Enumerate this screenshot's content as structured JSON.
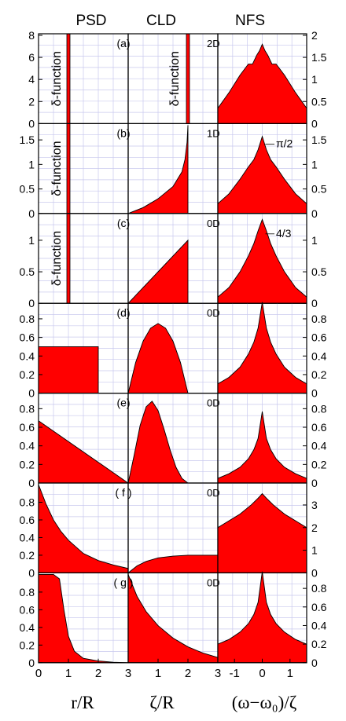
{
  "figure": {
    "headers": [
      "PSD",
      "CLD",
      "NFS"
    ],
    "bottom_labels": {
      "left": "r/R",
      "middle": "ζ/R",
      "right": "(ω−ω₀)/ζ"
    }
  },
  "chart_data": [
    {
      "type": "area",
      "row_label": "(a)",
      "psd": {
        "type": "area",
        "x": [
          0.98,
          1.0,
          1.02
        ],
        "y": [
          0,
          8,
          0
        ],
        "xlim": [
          0,
          3
        ],
        "ylim": [
          0,
          8
        ],
        "yticks": [
          0,
          2,
          4,
          6,
          8
        ],
        "annotation": "δ-function",
        "spike_at": 1
      },
      "cld": {
        "type": "area",
        "x": [
          1.98,
          2.0,
          2.02
        ],
        "y": [
          0,
          2,
          0
        ],
        "xlim": [
          0,
          3
        ],
        "ylim": [
          0,
          2
        ],
        "annotation": "δ-function",
        "spike_at": 2
      },
      "nfs": {
        "type": "area",
        "x": [
          -1.6,
          -1.2,
          -0.8,
          -0.5,
          -0.35,
          -0.2,
          -0.1,
          0,
          0.1,
          0.2,
          0.35,
          0.5,
          0.8,
          1.2,
          1.6
        ],
        "y": [
          0.35,
          0.7,
          1.1,
          1.35,
          1.35,
          1.55,
          1.65,
          1.8,
          1.65,
          1.55,
          1.35,
          1.35,
          1.1,
          0.7,
          0.35
        ],
        "xlim": [
          -1.6,
          1.6
        ],
        "ylim": [
          0,
          2.0
        ],
        "yticks": [
          0.0,
          0.5,
          1.0,
          1.5,
          2.0
        ],
        "dimension": "2D"
      }
    },
    {
      "type": "area",
      "row_label": "(b)",
      "psd": {
        "type": "area",
        "x": [
          0.98,
          1.0,
          1.02
        ],
        "y": [
          0,
          1.8,
          0
        ],
        "xlim": [
          0,
          3
        ],
        "ylim": [
          0,
          1.8
        ],
        "yticks": [
          0.0,
          0.5,
          1.0,
          1.5
        ],
        "annotation": "δ-function",
        "spike_at": 1
      },
      "cld": {
        "type": "area",
        "x": [
          0,
          0.5,
          1.0,
          1.5,
          1.8,
          1.9,
          1.97,
          2.0
        ],
        "y": [
          0,
          0.12,
          0.3,
          0.55,
          0.85,
          1.1,
          1.45,
          1.8
        ],
        "xlim": [
          0,
          3
        ],
        "ylim": [
          0,
          1.8
        ]
      },
      "nfs": {
        "type": "area",
        "x": [
          -1.6,
          -1.2,
          -0.8,
          -0.5,
          -0.3,
          -0.15,
          0,
          0.15,
          0.3,
          0.5,
          0.8,
          1.2,
          1.6
        ],
        "y": [
          0.2,
          0.4,
          0.7,
          0.95,
          1.1,
          1.3,
          1.57,
          1.3,
          1.1,
          0.95,
          0.7,
          0.4,
          0.2
        ],
        "xlim": [
          -1.6,
          1.6
        ],
        "ylim": [
          0,
          1.8
        ],
        "yticks": [
          0.0,
          0.5,
          1.0,
          1.5
        ],
        "dimension": "1D",
        "annotation": "π/2"
      }
    },
    {
      "type": "area",
      "row_label": "(c)",
      "psd": {
        "type": "area",
        "x": [
          0.98,
          1.0,
          1.02
        ],
        "y": [
          0,
          1.4,
          0
        ],
        "xlim": [
          0,
          3
        ],
        "ylim": [
          0,
          1.4
        ],
        "yticks": [
          0.0,
          0.5,
          1.0
        ],
        "annotation": "δ-function",
        "spike_at": 1
      },
      "cld": {
        "type": "area",
        "x": [
          0,
          2
        ],
        "y": [
          0,
          1.0
        ],
        "xlim": [
          0,
          3
        ],
        "ylim": [
          0,
          1.4
        ]
      },
      "nfs": {
        "type": "area",
        "x": [
          -1.6,
          -1.2,
          -0.8,
          -0.5,
          -0.3,
          -0.15,
          0,
          0.15,
          0.3,
          0.5,
          0.8,
          1.2,
          1.6
        ],
        "y": [
          0.1,
          0.25,
          0.5,
          0.75,
          0.95,
          1.15,
          1.33,
          1.15,
          0.95,
          0.75,
          0.5,
          0.25,
          0.1
        ],
        "xlim": [
          -1.6,
          1.6
        ],
        "ylim": [
          0,
          1.4
        ],
        "yticks": [
          0.0,
          0.5,
          1.0
        ],
        "dimension": "0D",
        "annotation": "4/3"
      }
    },
    {
      "type": "area",
      "row_label": "(d)",
      "psd": {
        "type": "area",
        "x": [
          0,
          0,
          2,
          2
        ],
        "y": [
          0,
          0.5,
          0.5,
          0
        ],
        "xlim": [
          0,
          3
        ],
        "ylim": [
          0,
          0.95
        ],
        "yticks": [
          0.0,
          0.2,
          0.4,
          0.6,
          0.8
        ]
      },
      "cld": {
        "type": "area",
        "x": [
          0,
          0.25,
          0.5,
          0.75,
          1.0,
          1.25,
          1.5,
          1.75,
          2.0
        ],
        "y": [
          0,
          0.33,
          0.56,
          0.7,
          0.75,
          0.7,
          0.56,
          0.33,
          0
        ],
        "xlim": [
          0,
          3
        ],
        "ylim": [
          0,
          0.95
        ]
      },
      "nfs": {
        "type": "area",
        "x": [
          -1.6,
          -1.2,
          -0.8,
          -0.5,
          -0.3,
          -0.15,
          0,
          0.15,
          0.3,
          0.5,
          0.8,
          1.2,
          1.6
        ],
        "y": [
          0.1,
          0.17,
          0.28,
          0.42,
          0.55,
          0.7,
          0.98,
          0.7,
          0.55,
          0.42,
          0.28,
          0.17,
          0.1
        ],
        "xlim": [
          -1.6,
          1.6
        ],
        "ylim": [
          0,
          0.95
        ],
        "yticks": [
          0.0,
          0.2,
          0.4,
          0.6,
          0.8
        ],
        "dimension": "0D"
      }
    },
    {
      "type": "area",
      "row_label": "(e)",
      "psd": {
        "type": "area",
        "x": [
          0,
          3
        ],
        "y": [
          0.67,
          0
        ],
        "xlim": [
          0,
          3
        ],
        "ylim": [
          0,
          0.95
        ],
        "yticks": [
          0.0,
          0.2,
          0.4,
          0.6,
          0.8
        ]
      },
      "cld": {
        "type": "area",
        "x": [
          0,
          0.2,
          0.4,
          0.6,
          0.8,
          1.0,
          1.2,
          1.4,
          1.6,
          1.8,
          2.0
        ],
        "y": [
          0,
          0.3,
          0.62,
          0.82,
          0.88,
          0.78,
          0.58,
          0.36,
          0.17,
          0.05,
          0
        ],
        "xlim": [
          0,
          3
        ],
        "ylim": [
          0,
          0.95
        ]
      },
      "nfs": {
        "type": "area",
        "x": [
          -1.6,
          -1.2,
          -0.8,
          -0.5,
          -0.3,
          -0.15,
          0,
          0.15,
          0.3,
          0.5,
          0.8,
          1.2,
          1.6
        ],
        "y": [
          0.05,
          0.1,
          0.17,
          0.26,
          0.36,
          0.48,
          0.77,
          0.48,
          0.36,
          0.26,
          0.17,
          0.1,
          0.05
        ],
        "xlim": [
          -1.6,
          1.6
        ],
        "ylim": [
          0,
          0.95
        ],
        "yticks": [
          0.0,
          0.2,
          0.4,
          0.6,
          0.8
        ],
        "dimension": "0D"
      }
    },
    {
      "type": "area",
      "row_label": "( f )",
      "psd": {
        "type": "area",
        "x": [
          0,
          0.25,
          0.5,
          0.75,
          1.0,
          1.5,
          2.0,
          2.5,
          3.0
        ],
        "y": [
          1.0,
          0.78,
          0.6,
          0.47,
          0.37,
          0.22,
          0.14,
          0.09,
          0.05
        ],
        "xlim": [
          0,
          3
        ],
        "ylim": [
          0,
          1.0
        ],
        "yticks": [
          0.0,
          0.2,
          0.4,
          0.6,
          0.8
        ]
      },
      "cld": {
        "type": "area",
        "x": [
          0,
          0.3,
          0.6,
          1.0,
          1.5,
          2.0,
          2.5,
          3.0
        ],
        "y": [
          0,
          0.08,
          0.13,
          0.17,
          0.19,
          0.2,
          0.2,
          0.2
        ],
        "xlim": [
          0,
          3
        ],
        "ylim": [
          0,
          1.0
        ]
      },
      "nfs": {
        "type": "area",
        "x": [
          -1.6,
          -1.2,
          -0.8,
          -0.4,
          -0.15,
          0,
          0.15,
          0.4,
          0.8,
          1.2,
          1.6
        ],
        "y": [
          2.0,
          2.3,
          2.6,
          3.0,
          3.3,
          3.5,
          3.3,
          3.0,
          2.6,
          2.3,
          2.0
        ],
        "xlim": [
          -1.6,
          1.6
        ],
        "ylim": [
          0,
          3.9
        ],
        "yticks": [
          0,
          1,
          2,
          3
        ],
        "dimension": "0D"
      }
    },
    {
      "type": "area",
      "row_label": "( g )",
      "psd": {
        "type": "area",
        "x": [
          0,
          0.5,
          0.7,
          0.85,
          1.0,
          1.2,
          1.5,
          2.0,
          2.5,
          3.0
        ],
        "y": [
          1.0,
          1.0,
          0.95,
          0.6,
          0.3,
          0.13,
          0.05,
          0.02,
          0.005,
          0
        ],
        "xlim": [
          0,
          3
        ],
        "ylim": [
          0,
          1.0
        ],
        "yticks": [
          0.0,
          0.2,
          0.4,
          0.6,
          0.8
        ]
      },
      "cld": {
        "type": "area",
        "x": [
          0,
          0.3,
          0.6,
          1.0,
          1.5,
          2.0,
          2.5,
          3.0
        ],
        "y": [
          1.0,
          0.75,
          0.58,
          0.42,
          0.28,
          0.18,
          0.11,
          0.06
        ],
        "xlim": [
          0,
          3
        ],
        "ylim": [
          0,
          1.0
        ],
        "xticks": [
          0,
          1,
          2,
          3
        ]
      },
      "nfs": {
        "type": "area",
        "x": [
          -1.6,
          -1.2,
          -0.8,
          -0.5,
          -0.3,
          -0.15,
          0,
          0.15,
          0.3,
          0.5,
          0.8,
          1.2,
          1.6
        ],
        "y": [
          0.2,
          0.25,
          0.33,
          0.42,
          0.52,
          0.65,
          0.98,
          0.65,
          0.52,
          0.42,
          0.33,
          0.25,
          0.2
        ],
        "xlim": [
          -1.6,
          1.6
        ],
        "ylim": [
          0,
          0.95
        ],
        "yticks": [
          0.0,
          0.2,
          0.4,
          0.6,
          0.8
        ],
        "dimension": "0D",
        "xticks": [
          -1,
          0,
          1
        ]
      }
    }
  ]
}
